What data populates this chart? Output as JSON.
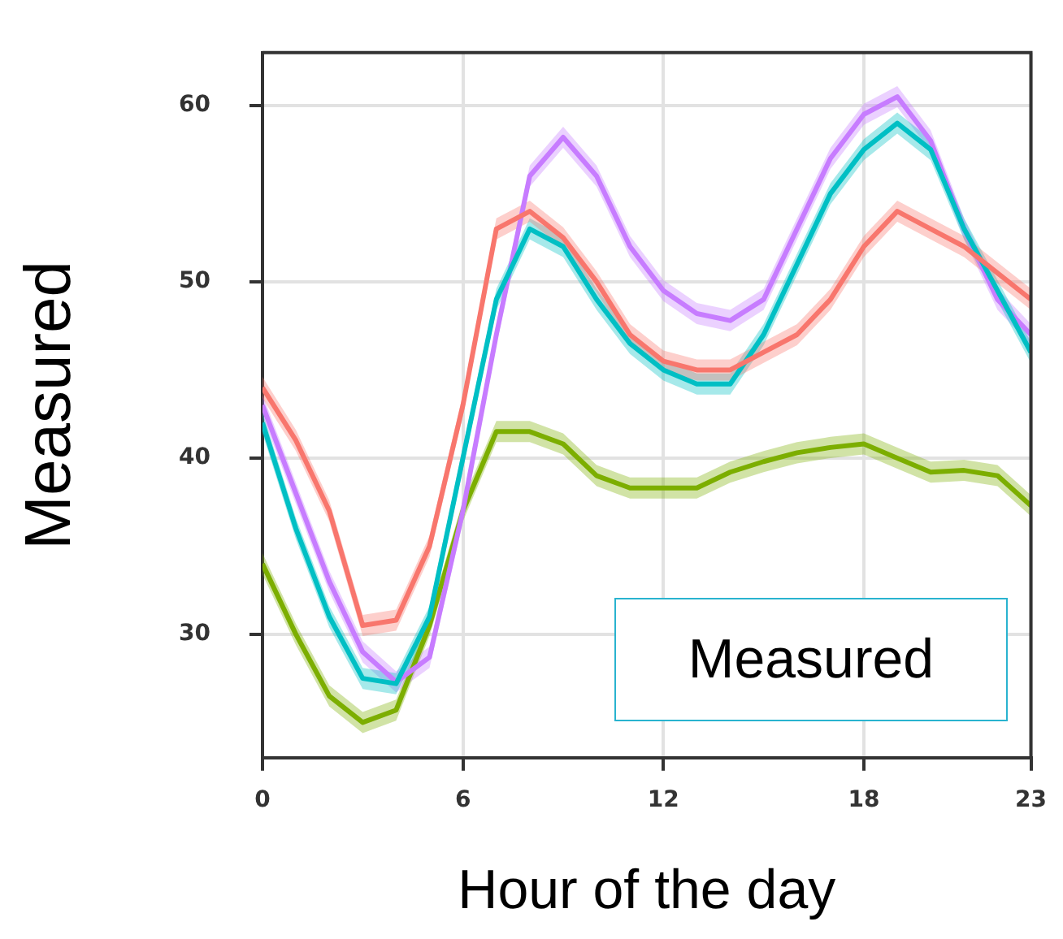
{
  "chart_data": {
    "type": "line",
    "xlabel": "Hour of the day",
    "ylabel": "Measured",
    "annotations": [
      "Measured"
    ],
    "x": [
      0,
      1,
      2,
      3,
      4,
      5,
      6,
      7,
      8,
      9,
      10,
      11,
      12,
      13,
      14,
      15,
      16,
      17,
      18,
      19,
      20,
      21,
      22,
      23
    ],
    "xlim": [
      0,
      23
    ],
    "xticks": [
      0,
      6,
      12,
      18,
      23
    ],
    "ylim": [
      23,
      63
    ],
    "yticks": [
      30,
      40,
      50,
      60
    ],
    "grid": true,
    "legend": false,
    "marker": "none",
    "series": [
      {
        "color": "#f8766d",
        "values": [
          44,
          41,
          37,
          30.5,
          30.8,
          35,
          43,
          53,
          54,
          52.5,
          50,
          47,
          45.5,
          45,
          45,
          46,
          47,
          49,
          52,
          54,
          53,
          52,
          50.5,
          49
        ],
        "lower": [
          43.4,
          40.4,
          36.4,
          29.9,
          30.2,
          34.4,
          42.4,
          52.4,
          53.4,
          51.9,
          49.4,
          46.4,
          44.9,
          44.4,
          44.4,
          45.4,
          46.4,
          48.4,
          51.4,
          53.4,
          52.4,
          51.4,
          49.9,
          48.4
        ],
        "upper": [
          44.6,
          41.6,
          37.6,
          31.1,
          31.4,
          35.6,
          43.6,
          53.6,
          54.6,
          53.1,
          50.6,
          47.6,
          46.1,
          45.6,
          45.6,
          46.6,
          47.6,
          49.6,
          52.6,
          54.6,
          53.6,
          52.6,
          51.1,
          49.6
        ]
      },
      {
        "color": "#00bfc4",
        "values": [
          42,
          36,
          31,
          27.5,
          27.2,
          31,
          40,
          49,
          53,
          52,
          49,
          46.5,
          45,
          44.2,
          44.2,
          47,
          51,
          55,
          57.5,
          59,
          57.5,
          53,
          49.5,
          46
        ],
        "lower": [
          41.4,
          35.4,
          30.4,
          26.9,
          26.6,
          30.4,
          39.4,
          48.4,
          52.4,
          51.4,
          48.4,
          45.9,
          44.4,
          43.6,
          43.6,
          46.4,
          50.4,
          54.4,
          56.9,
          58.4,
          56.9,
          52.4,
          48.9,
          45.4
        ],
        "upper": [
          42.6,
          36.6,
          31.6,
          28.1,
          27.8,
          31.6,
          40.6,
          49.6,
          53.6,
          52.6,
          49.6,
          47.1,
          45.6,
          44.8,
          44.8,
          47.6,
          51.6,
          55.6,
          58.1,
          59.6,
          58.1,
          53.6,
          50.1,
          46.6
        ]
      },
      {
        "color": "#c77cff",
        "values": [
          43,
          38,
          33,
          29,
          27.3,
          28.7,
          37,
          47,
          56,
          58.2,
          56,
          52,
          49.5,
          48.2,
          47.8,
          49,
          53,
          57,
          59.5,
          60.5,
          58,
          53,
          49,
          47
        ],
        "lower": [
          42.4,
          37.4,
          32.4,
          28.4,
          26.7,
          28.1,
          36.4,
          46.4,
          55.4,
          57.6,
          55.4,
          51.4,
          48.9,
          47.6,
          47.2,
          48.4,
          52.4,
          56.4,
          58.9,
          59.9,
          57.4,
          52.4,
          48.4,
          46.4
        ],
        "upper": [
          43.6,
          38.6,
          33.6,
          29.6,
          27.9,
          29.3,
          37.6,
          47.6,
          56.6,
          58.8,
          56.6,
          52.6,
          50.1,
          48.8,
          48.4,
          49.6,
          53.6,
          57.6,
          60.1,
          61.1,
          58.6,
          53.6,
          49.6,
          47.6
        ]
      },
      {
        "color": "#7cae00",
        "values": [
          34,
          30,
          26.5,
          25,
          25.7,
          30.5,
          37,
          41.5,
          41.5,
          40.8,
          39,
          38.3,
          38.3,
          38.3,
          39.2,
          39.8,
          40.3,
          40.6,
          40.8,
          40,
          39.2,
          39.3,
          39,
          37.3
        ],
        "lower": [
          33.4,
          29.4,
          25.9,
          24.4,
          25.1,
          29.9,
          36.4,
          40.9,
          40.9,
          40.2,
          38.4,
          37.7,
          37.7,
          37.7,
          38.6,
          39.2,
          39.7,
          40,
          40.2,
          39.4,
          38.6,
          38.7,
          38.4,
          36.7
        ],
        "upper": [
          34.6,
          30.6,
          27.1,
          25.6,
          26.3,
          31.1,
          37.6,
          42.1,
          42.1,
          41.4,
          39.6,
          38.9,
          38.9,
          38.9,
          39.8,
          40.4,
          40.9,
          41.2,
          41.4,
          40.6,
          39.8,
          39.9,
          39.6,
          37.9
        ]
      }
    ]
  }
}
